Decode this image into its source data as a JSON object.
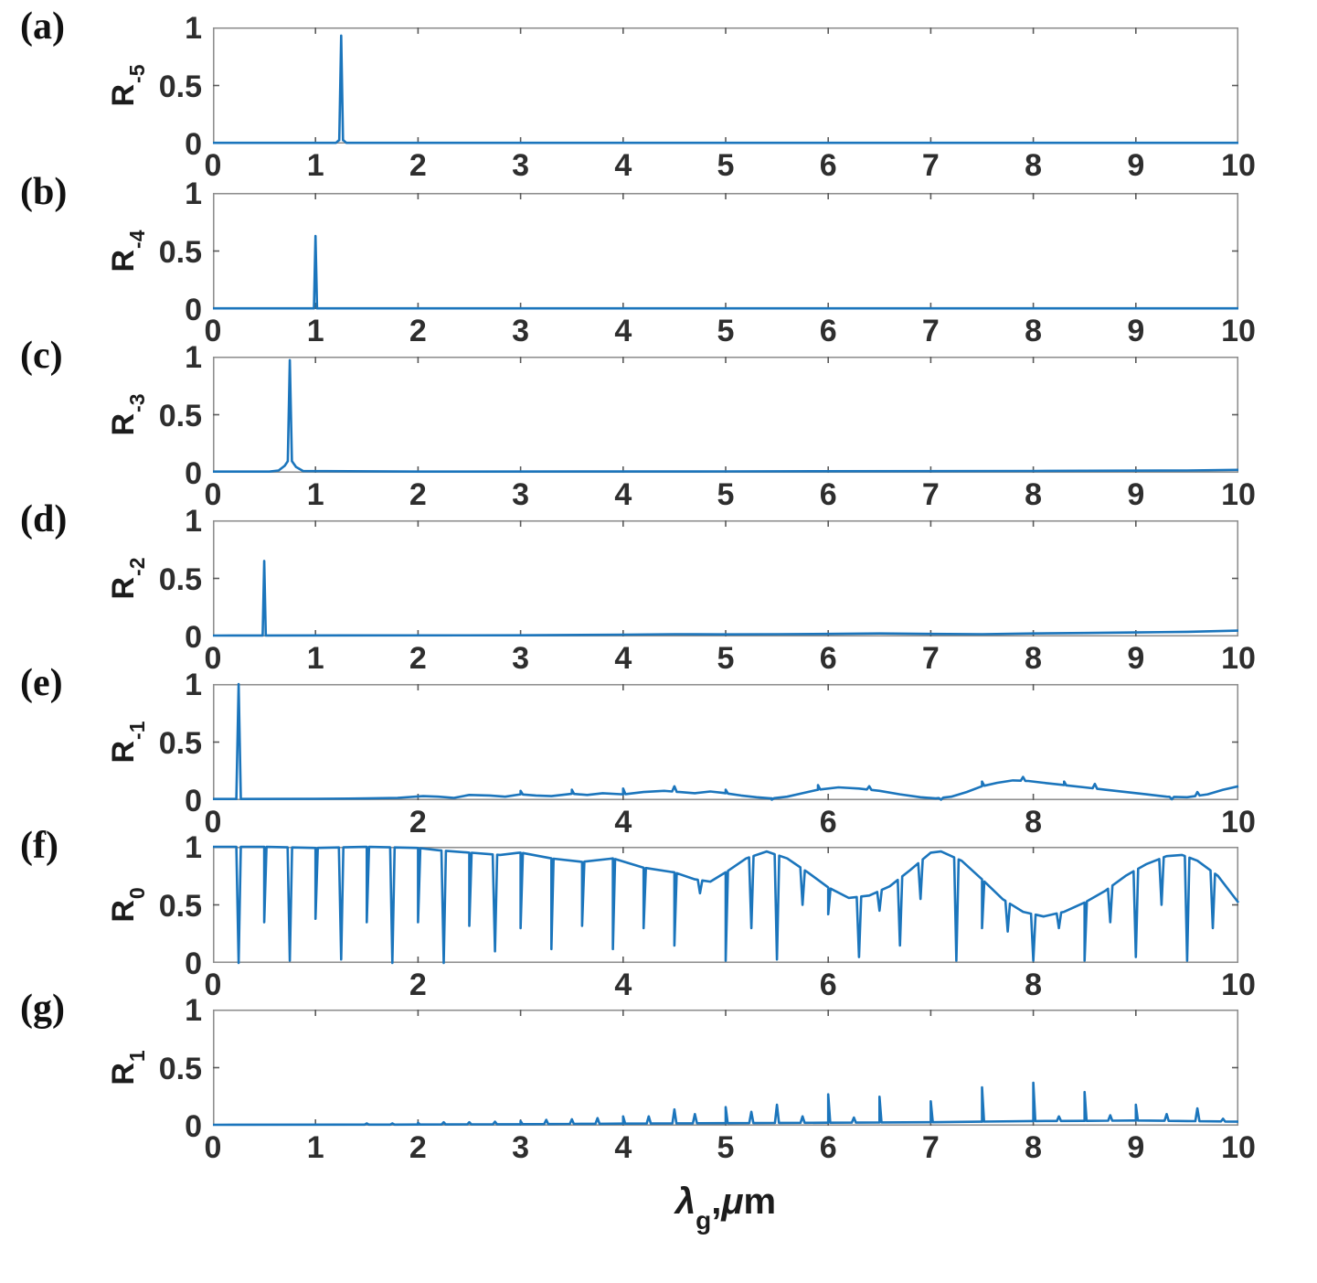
{
  "figure": {
    "xlabel": {
      "prefix": "λ",
      "sub": "g",
      "comma": ",",
      "mu": "μ",
      "unit": "m"
    },
    "colors": {
      "line": "#1b75bc",
      "frame": "#8f8f8f",
      "tick": "#5a5a5a",
      "text": "#2e2e2e"
    }
  },
  "chart_data": [
    {
      "type": "line",
      "panel_label": "(a)",
      "ylabel_base": "R",
      "ylabel_sub": "-5",
      "xlim": [
        0,
        10
      ],
      "ylim": [
        0,
        1
      ],
      "xticks": [
        0,
        1,
        2,
        3,
        4,
        5,
        6,
        7,
        8,
        9,
        10
      ],
      "xtick_labels": [
        "0",
        "1",
        "2",
        "3",
        "4",
        "5",
        "6",
        "7",
        "8",
        "9",
        "10"
      ],
      "yticks": [
        0,
        0.5,
        1
      ],
      "ytick_labels": [
        "0",
        "0.5",
        "1"
      ],
      "spike_halfwidth": 0.018,
      "base": [
        [
          0,
          0.006
        ],
        [
          1.2,
          0.006
        ],
        [
          1.23,
          0.03
        ],
        [
          1.27,
          0.03
        ],
        [
          1.3,
          0.006
        ],
        [
          10,
          0.006
        ]
      ],
      "spikes": [
        [
          1.25,
          0.93
        ]
      ]
    },
    {
      "type": "line",
      "panel_label": "(b)",
      "ylabel_base": "R",
      "ylabel_sub": "-4",
      "xlim": [
        0,
        10
      ],
      "ylim": [
        0,
        1
      ],
      "xticks": [
        0,
        1,
        2,
        3,
        4,
        5,
        6,
        7,
        8,
        9,
        10
      ],
      "xtick_labels": [
        "0",
        "1",
        "2",
        "3",
        "4",
        "5",
        "6",
        "7",
        "8",
        "9",
        "10"
      ],
      "yticks": [
        0,
        0.5,
        1
      ],
      "ytick_labels": [
        "0",
        "0.5",
        "1"
      ],
      "spike_halfwidth": 0.015,
      "base": [
        [
          0,
          0.006
        ],
        [
          10,
          0.006
        ]
      ],
      "spikes": [
        [
          1.0,
          0.63
        ]
      ]
    },
    {
      "type": "line",
      "panel_label": "(c)",
      "ylabel_base": "R",
      "ylabel_sub": "-3",
      "xlim": [
        0,
        10
      ],
      "ylim": [
        0,
        1
      ],
      "xticks": [
        0,
        1,
        2,
        3,
        4,
        5,
        6,
        7,
        8,
        9,
        10
      ],
      "xtick_labels": [
        "0",
        "1",
        "2",
        "3",
        "4",
        "5",
        "6",
        "7",
        "8",
        "9",
        "10"
      ],
      "yticks": [
        0,
        0.5,
        1
      ],
      "ytick_labels": [
        "0",
        "0.5",
        "1"
      ],
      "spike_halfwidth": 0.02,
      "base": [
        [
          0,
          0.01
        ],
        [
          0.55,
          0.01
        ],
        [
          0.64,
          0.02
        ],
        [
          0.7,
          0.06
        ],
        [
          0.73,
          0.1
        ],
        [
          0.77,
          0.1
        ],
        [
          0.81,
          0.05
        ],
        [
          0.88,
          0.015
        ],
        [
          2,
          0.01
        ],
        [
          5,
          0.012
        ],
        [
          8,
          0.016
        ],
        [
          9.5,
          0.02
        ],
        [
          10,
          0.025
        ]
      ],
      "spikes": [
        [
          0.75,
          0.97
        ]
      ]
    },
    {
      "type": "line",
      "panel_label": "(d)",
      "ylabel_base": "R",
      "ylabel_sub": "-2",
      "xlim": [
        0,
        10
      ],
      "ylim": [
        0,
        1
      ],
      "xticks": [
        0,
        1,
        2,
        3,
        4,
        5,
        6,
        7,
        8,
        9,
        10
      ],
      "xtick_labels": [
        "0",
        "1",
        "2",
        "3",
        "4",
        "5",
        "6",
        "7",
        "8",
        "9",
        "10"
      ],
      "yticks": [
        0,
        0.5,
        1
      ],
      "ytick_labels": [
        "0",
        "0.5",
        "1"
      ],
      "spike_halfwidth": 0.015,
      "base": [
        [
          0,
          0.008
        ],
        [
          3,
          0.01
        ],
        [
          4,
          0.016
        ],
        [
          4.5,
          0.02
        ],
        [
          5,
          0.018
        ],
        [
          5.5,
          0.02
        ],
        [
          6,
          0.022
        ],
        [
          6.5,
          0.026
        ],
        [
          7,
          0.022
        ],
        [
          7.5,
          0.02
        ],
        [
          8,
          0.026
        ],
        [
          8.5,
          0.03
        ],
        [
          9,
          0.035
        ],
        [
          9.5,
          0.04
        ],
        [
          10,
          0.05
        ]
      ],
      "spikes": [
        [
          0.5,
          0.65
        ]
      ]
    },
    {
      "type": "line",
      "panel_label": "(e)",
      "ylabel_base": "R",
      "ylabel_sub": "-1",
      "xlim": [
        0,
        10
      ],
      "ylim": [
        0,
        1
      ],
      "xticks": [
        0,
        2,
        4,
        6,
        8,
        10
      ],
      "xtick_labels": [
        "0",
        "2",
        "4",
        "6",
        "8",
        "10"
      ],
      "yticks": [
        0,
        0.5,
        1
      ],
      "ytick_labels": [
        "0",
        "0.5",
        "1"
      ],
      "spike_halfwidth": 0.022,
      "base": [
        [
          0,
          0.01
        ],
        [
          1,
          0.012
        ],
        [
          1.5,
          0.015
        ],
        [
          1.8,
          0.02
        ],
        [
          2.05,
          0.035
        ],
        [
          2.2,
          0.03
        ],
        [
          2.35,
          0.02
        ],
        [
          2.5,
          0.045
        ],
        [
          2.7,
          0.04
        ],
        [
          2.85,
          0.03
        ],
        [
          3.0,
          0.05
        ],
        [
          3.15,
          0.04
        ],
        [
          3.3,
          0.035
        ],
        [
          3.5,
          0.055
        ],
        [
          3.65,
          0.045
        ],
        [
          3.8,
          0.06
        ],
        [
          4.0,
          0.05
        ],
        [
          4.2,
          0.07
        ],
        [
          4.4,
          0.08
        ],
        [
          4.55,
          0.07
        ],
        [
          4.7,
          0.06
        ],
        [
          4.85,
          0.075
        ],
        [
          5.0,
          0.06
        ],
        [
          5.15,
          0.04
        ],
        [
          5.3,
          0.025
        ],
        [
          5.45,
          0.015
        ],
        [
          5.6,
          0.03
        ],
        [
          5.75,
          0.06
        ],
        [
          5.9,
          0.09
        ],
        [
          6.1,
          0.11
        ],
        [
          6.3,
          0.1
        ],
        [
          6.5,
          0.08
        ],
        [
          6.7,
          0.05
        ],
        [
          6.9,
          0.025
        ],
        [
          7.05,
          0.015
        ],
        [
          7.2,
          0.03
        ],
        [
          7.35,
          0.07
        ],
        [
          7.5,
          0.12
        ],
        [
          7.65,
          0.15
        ],
        [
          7.8,
          0.17
        ],
        [
          7.95,
          0.165
        ],
        [
          8.1,
          0.15
        ],
        [
          8.3,
          0.13
        ],
        [
          8.5,
          0.11
        ],
        [
          8.7,
          0.09
        ],
        [
          8.9,
          0.07
        ],
        [
          9.1,
          0.05
        ],
        [
          9.3,
          0.03
        ],
        [
          9.5,
          0.025
        ],
        [
          9.7,
          0.05
        ],
        [
          9.85,
          0.09
        ],
        [
          10,
          0.12
        ]
      ],
      "spikes": [
        [
          0.25,
          1.0
        ],
        [
          3.0,
          0.08
        ],
        [
          3.5,
          0.09
        ],
        [
          4.0,
          0.1
        ],
        [
          4.5,
          0.12
        ],
        [
          5.0,
          0.09
        ],
        [
          5.45,
          0.004
        ],
        [
          5.9,
          0.13
        ],
        [
          6.4,
          0.12
        ],
        [
          7.1,
          0.004
        ],
        [
          7.5,
          0.16
        ],
        [
          7.9,
          0.2
        ],
        [
          8.3,
          0.16
        ],
        [
          8.6,
          0.14
        ],
        [
          9.35,
          0.008
        ],
        [
          9.6,
          0.07
        ]
      ]
    },
    {
      "type": "line",
      "panel_label": "(f)",
      "ylabel_base": "R",
      "ylabel_sub": "0",
      "xlim": [
        0,
        10
      ],
      "ylim": [
        0,
        1
      ],
      "xticks": [
        0,
        2,
        4,
        6,
        8,
        10
      ],
      "xtick_labels": [
        "0",
        "2",
        "4",
        "6",
        "8",
        "10"
      ],
      "yticks": [
        0,
        0.5,
        1
      ],
      "ytick_labels": [
        "0",
        "0.5",
        "1"
      ],
      "spike_halfwidth": 0.022,
      "base": [
        [
          0,
          1.0
        ],
        [
          0.5,
          1.0
        ],
        [
          1.0,
          0.99
        ],
        [
          1.5,
          1.0
        ],
        [
          2.0,
          0.99
        ],
        [
          2.2,
          0.97
        ],
        [
          2.5,
          0.95
        ],
        [
          2.8,
          0.93
        ],
        [
          3.0,
          0.95
        ],
        [
          3.3,
          0.9
        ],
        [
          3.6,
          0.87
        ],
        [
          3.9,
          0.9
        ],
        [
          4.2,
          0.82
        ],
        [
          4.5,
          0.78
        ],
        [
          4.7,
          0.72
        ],
        [
          4.85,
          0.7
        ],
        [
          5.0,
          0.78
        ],
        [
          5.2,
          0.9
        ],
        [
          5.4,
          0.96
        ],
        [
          5.6,
          0.9
        ],
        [
          5.8,
          0.78
        ],
        [
          6.0,
          0.65
        ],
        [
          6.2,
          0.56
        ],
        [
          6.4,
          0.58
        ],
        [
          6.6,
          0.66
        ],
        [
          6.8,
          0.8
        ],
        [
          7.0,
          0.95
        ],
        [
          7.1,
          0.96
        ],
        [
          7.3,
          0.88
        ],
        [
          7.5,
          0.72
        ],
        [
          7.7,
          0.55
        ],
        [
          7.9,
          0.44
        ],
        [
          8.1,
          0.4
        ],
        [
          8.3,
          0.44
        ],
        [
          8.5,
          0.52
        ],
        [
          8.7,
          0.62
        ],
        [
          8.9,
          0.75
        ],
        [
          9.1,
          0.85
        ],
        [
          9.3,
          0.92
        ],
        [
          9.45,
          0.93
        ],
        [
          9.6,
          0.88
        ],
        [
          9.8,
          0.75
        ],
        [
          10,
          0.52
        ]
      ],
      "spikes": [
        [
          0.25,
          0.0
        ],
        [
          0.5,
          0.35
        ],
        [
          0.75,
          0.02
        ],
        [
          1.0,
          0.38
        ],
        [
          1.25,
          0.03
        ],
        [
          1.5,
          0.35
        ],
        [
          1.75,
          0.0
        ],
        [
          2.0,
          0.35
        ],
        [
          2.25,
          0.0
        ],
        [
          2.5,
          0.32
        ],
        [
          2.75,
          0.1
        ],
        [
          3.0,
          0.3
        ],
        [
          3.3,
          0.12
        ],
        [
          3.6,
          0.32
        ],
        [
          3.9,
          0.12
        ],
        [
          4.2,
          0.3
        ],
        [
          4.5,
          0.15
        ],
        [
          4.75,
          0.6
        ],
        [
          5.0,
          0.02
        ],
        [
          5.25,
          0.3
        ],
        [
          5.5,
          0.03
        ],
        [
          5.75,
          0.5
        ],
        [
          6.0,
          0.42
        ],
        [
          6.3,
          0.05
        ],
        [
          6.5,
          0.45
        ],
        [
          6.7,
          0.15
        ],
        [
          6.9,
          0.55
        ],
        [
          7.25,
          0.02
        ],
        [
          7.5,
          0.3
        ],
        [
          7.75,
          0.27
        ],
        [
          8.0,
          0.02
        ],
        [
          8.25,
          0.3
        ],
        [
          8.5,
          0.02
        ],
        [
          8.75,
          0.35
        ],
        [
          9.0,
          0.05
        ],
        [
          9.25,
          0.5
        ],
        [
          9.5,
          0.02
        ],
        [
          9.75,
          0.3
        ]
      ]
    },
    {
      "type": "line",
      "panel_label": "(g)",
      "ylabel_base": "R",
      "ylabel_sub": "1",
      "xlim": [
        0,
        10
      ],
      "ylim": [
        0,
        1
      ],
      "xticks": [
        0,
        1,
        2,
        3,
        4,
        5,
        6,
        7,
        8,
        9,
        10
      ],
      "xtick_labels": [
        "0",
        "1",
        "2",
        "3",
        "4",
        "5",
        "6",
        "7",
        "8",
        "9",
        "10"
      ],
      "yticks": [
        0,
        0.5,
        1
      ],
      "ytick_labels": [
        "0",
        "0.5",
        "1"
      ],
      "spike_halfwidth": 0.02,
      "base": [
        [
          0,
          0.008
        ],
        [
          2,
          0.01
        ],
        [
          3,
          0.013
        ],
        [
          4,
          0.018
        ],
        [
          5,
          0.022
        ],
        [
          6,
          0.026
        ],
        [
          6.5,
          0.028
        ],
        [
          7,
          0.03
        ],
        [
          7.5,
          0.035
        ],
        [
          8,
          0.04
        ],
        [
          8.5,
          0.042
        ],
        [
          9,
          0.045
        ],
        [
          9.5,
          0.04
        ],
        [
          10,
          0.035
        ]
      ],
      "spikes": [
        [
          1.5,
          0.02
        ],
        [
          1.75,
          0.02
        ],
        [
          2.0,
          0.025
        ],
        [
          2.25,
          0.03
        ],
        [
          2.5,
          0.03
        ],
        [
          2.75,
          0.035
        ],
        [
          3.0,
          0.04
        ],
        [
          3.25,
          0.05
        ],
        [
          3.5,
          0.055
        ],
        [
          3.75,
          0.065
        ],
        [
          4.0,
          0.08
        ],
        [
          4.25,
          0.08
        ],
        [
          4.5,
          0.14
        ],
        [
          4.7,
          0.1
        ],
        [
          5.0,
          0.16
        ],
        [
          5.25,
          0.12
        ],
        [
          5.5,
          0.18
        ],
        [
          5.75,
          0.08
        ],
        [
          6.0,
          0.27
        ],
        [
          6.25,
          0.07
        ],
        [
          6.5,
          0.25
        ],
        [
          7.0,
          0.21
        ],
        [
          7.5,
          0.33
        ],
        [
          8.0,
          0.37
        ],
        [
          8.25,
          0.08
        ],
        [
          8.5,
          0.29
        ],
        [
          8.75,
          0.09
        ],
        [
          9.0,
          0.18
        ],
        [
          9.3,
          0.1
        ],
        [
          9.6,
          0.15
        ],
        [
          9.85,
          0.06
        ]
      ]
    }
  ]
}
